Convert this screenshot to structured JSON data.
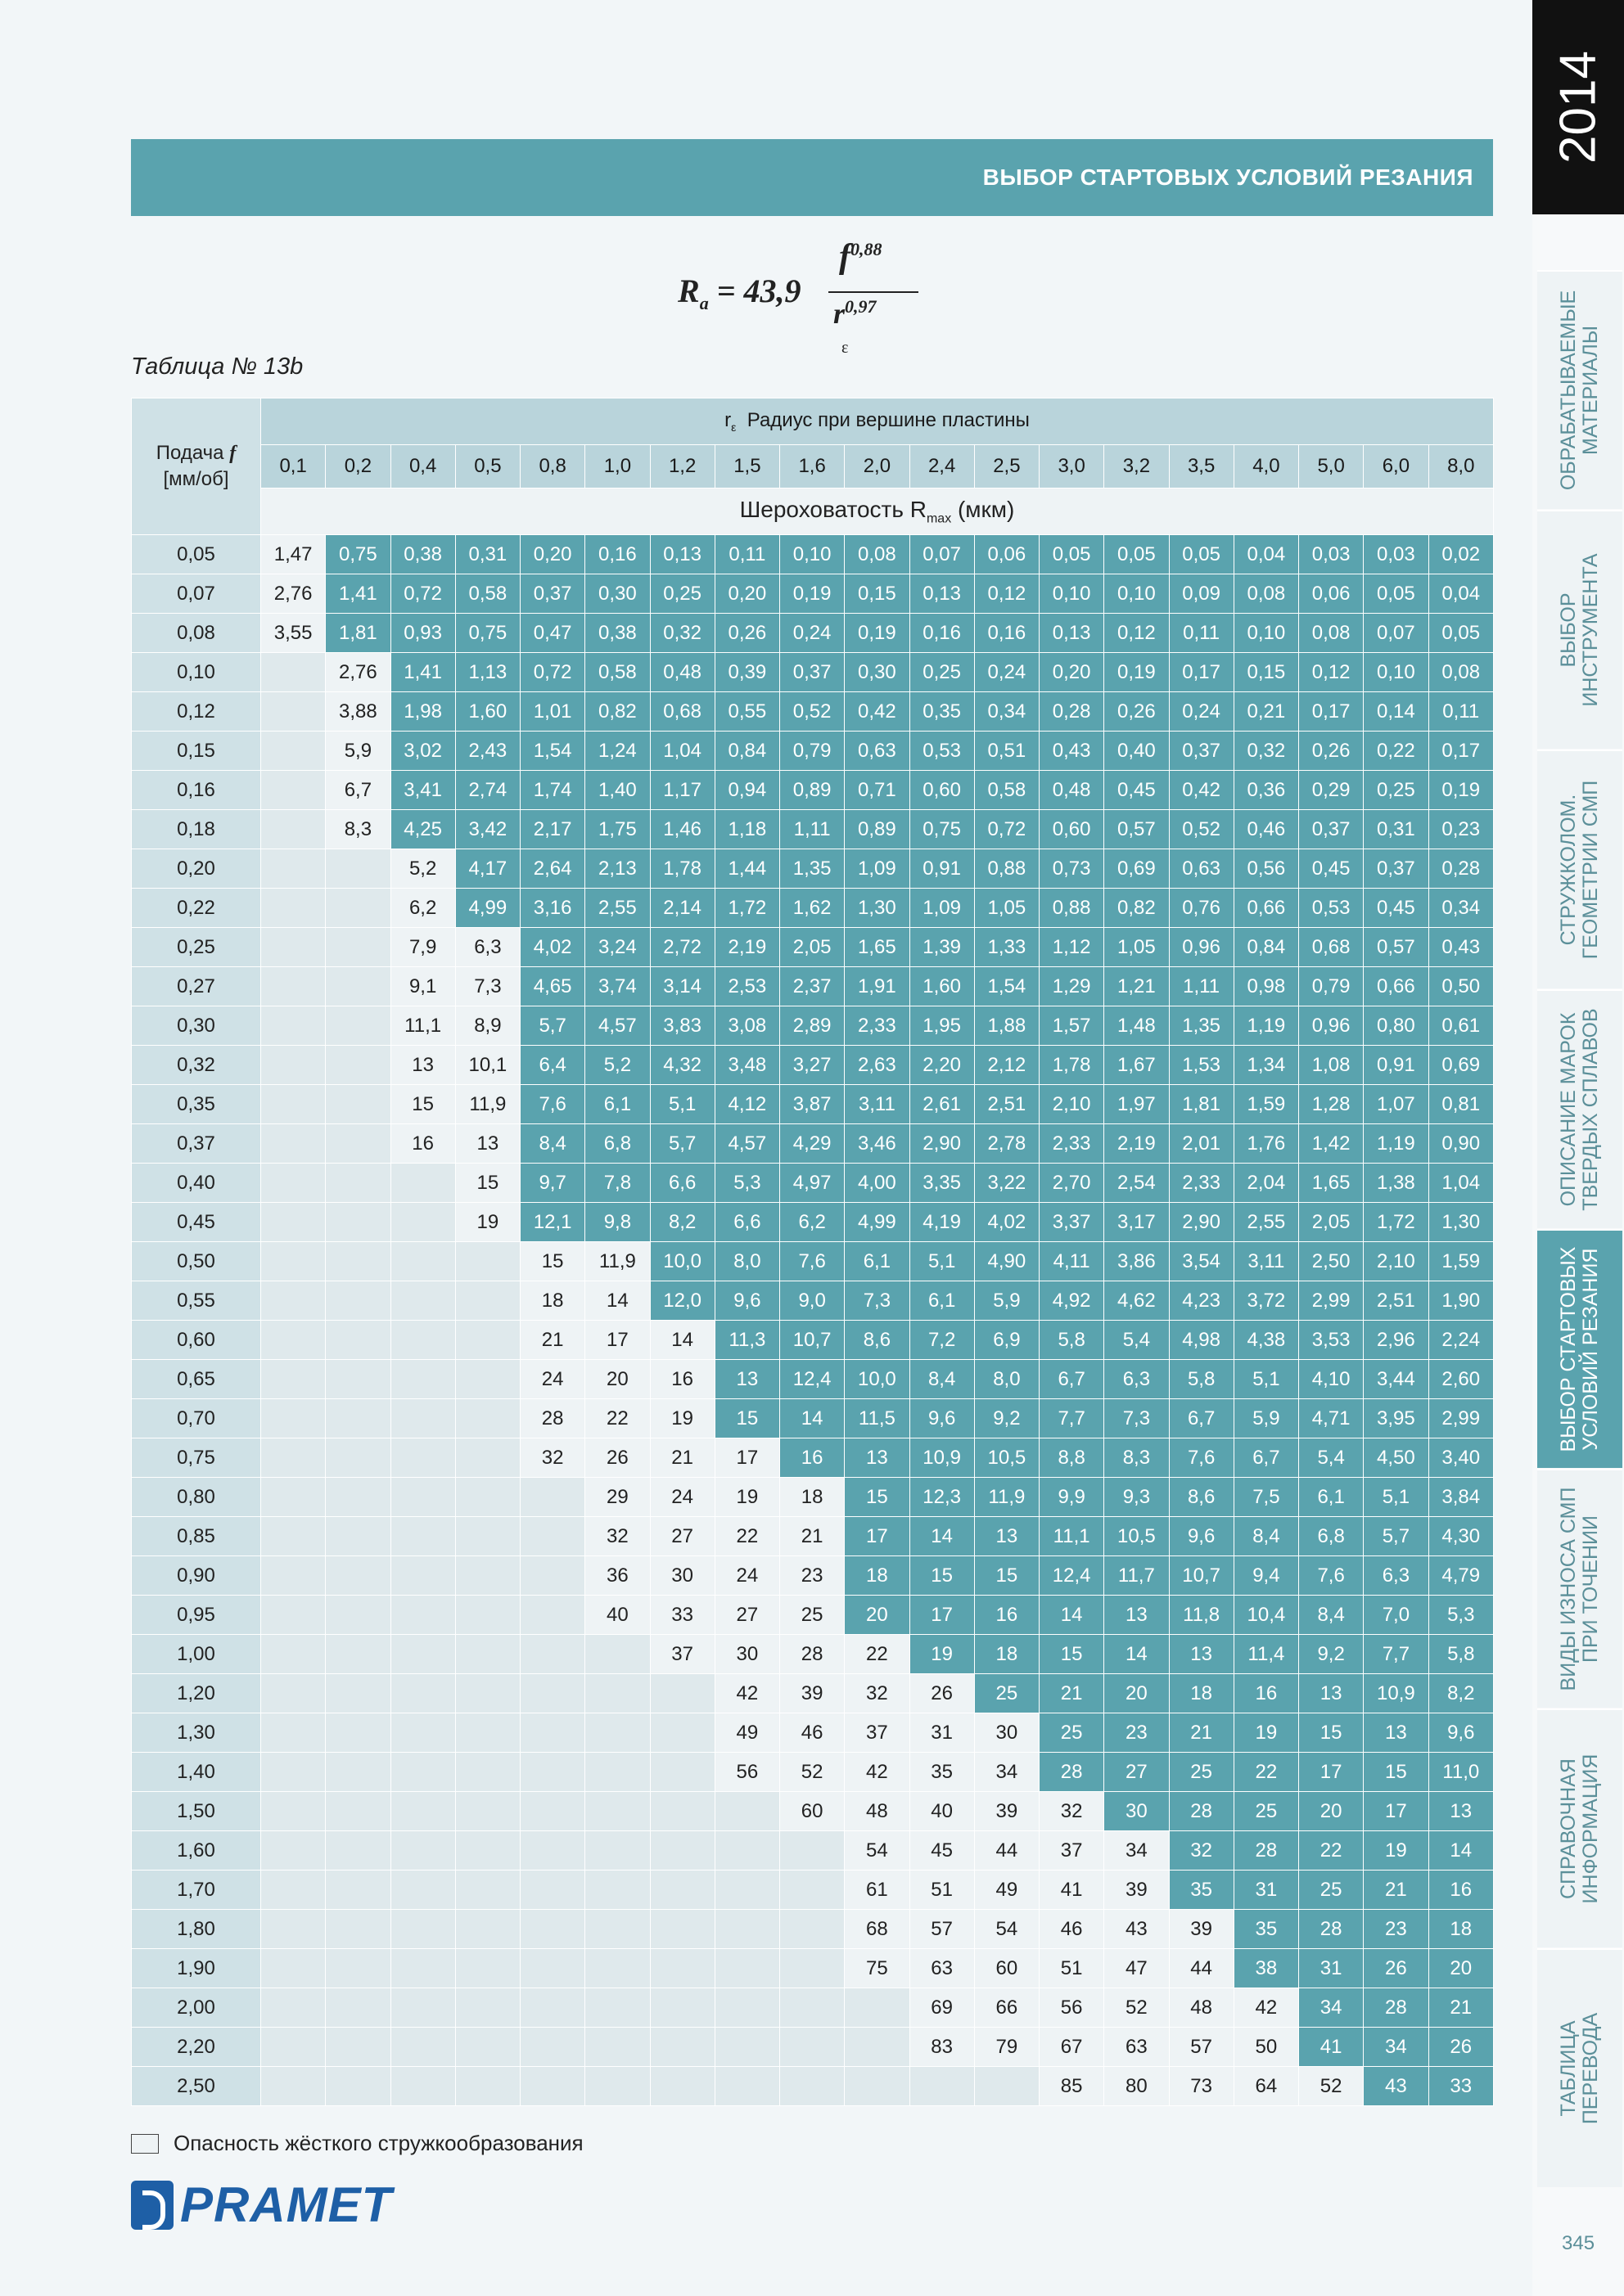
{
  "header": {
    "title": "ВЫБОР СТАРТОВЫХ УСЛОВИЙ РЕЗАНИЯ"
  },
  "formula": {
    "lhs_main": "R",
    "lhs_sub": "a",
    "eq": " = 43,9",
    "num_base": "f",
    "num_exp": "0,88",
    "den_base": "r",
    "den_sub": "ε",
    "den_exp": "0,97"
  },
  "table_caption": "Таблица № 13b",
  "table": {
    "feed_label_1": "Подача ",
    "feed_label_f": "f",
    "feed_label_2": "[мм/об]",
    "radius_symbol": "r",
    "radius_sub": "ε",
    "radius_title": "Радиус при вершине пластины",
    "roughness_label": "Шероховатость R",
    "roughness_sub": "max",
    "roughness_unit": " (мкм)",
    "radii": [
      "0,1",
      "0,2",
      "0,4",
      "0,5",
      "0,8",
      "1,0",
      "1,2",
      "1,5",
      "1,6",
      "2,0",
      "2,4",
      "2,5",
      "3,0",
      "3,2",
      "3,5",
      "4,0",
      "5,0",
      "6,0",
      "8,0"
    ],
    "rows": [
      {
        "f": "0,05",
        "s": 0,
        "k": 1,
        "v": [
          "1,47",
          "0,75",
          "0,38",
          "0,31",
          "0,20",
          "0,16",
          "0,13",
          "0,11",
          "0,10",
          "0,08",
          "0,07",
          "0,06",
          "0,05",
          "0,05",
          "0,05",
          "0,04",
          "0,03",
          "0,03",
          "0,02"
        ]
      },
      {
        "f": "0,07",
        "s": 0,
        "k": 1,
        "v": [
          "2,76",
          "1,41",
          "0,72",
          "0,58",
          "0,37",
          "0,30",
          "0,25",
          "0,20",
          "0,19",
          "0,15",
          "0,13",
          "0,12",
          "0,10",
          "0,10",
          "0,09",
          "0,08",
          "0,06",
          "0,05",
          "0,04"
        ]
      },
      {
        "f": "0,08",
        "s": 0,
        "k": 1,
        "v": [
          "3,55",
          "1,81",
          "0,93",
          "0,75",
          "0,47",
          "0,38",
          "0,32",
          "0,26",
          "0,24",
          "0,19",
          "0,16",
          "0,16",
          "0,13",
          "0,12",
          "0,11",
          "0,10",
          "0,08",
          "0,07",
          "0,05"
        ]
      },
      {
        "f": "0,10",
        "s": 1,
        "k": 1,
        "v": [
          "2,76",
          "1,41",
          "1,13",
          "0,72",
          "0,58",
          "0,48",
          "0,39",
          "0,37",
          "0,30",
          "0,25",
          "0,24",
          "0,20",
          "0,19",
          "0,17",
          "0,15",
          "0,12",
          "0,10",
          "0,08"
        ]
      },
      {
        "f": "0,12",
        "s": 1,
        "k": 1,
        "v": [
          "3,88",
          "1,98",
          "1,60",
          "1,01",
          "0,82",
          "0,68",
          "0,55",
          "0,52",
          "0,42",
          "0,35",
          "0,34",
          "0,28",
          "0,26",
          "0,24",
          "0,21",
          "0,17",
          "0,14",
          "0,11"
        ]
      },
      {
        "f": "0,15",
        "s": 1,
        "k": 1,
        "v": [
          "5,9",
          "3,02",
          "2,43",
          "1,54",
          "1,24",
          "1,04",
          "0,84",
          "0,79",
          "0,63",
          "0,53",
          "0,51",
          "0,43",
          "0,40",
          "0,37",
          "0,32",
          "0,26",
          "0,22",
          "0,17"
        ]
      },
      {
        "f": "0,16",
        "s": 1,
        "k": 1,
        "v": [
          "6,7",
          "3,41",
          "2,74",
          "1,74",
          "1,40",
          "1,17",
          "0,94",
          "0,89",
          "0,71",
          "0,60",
          "0,58",
          "0,48",
          "0,45",
          "0,42",
          "0,36",
          "0,29",
          "0,25",
          "0,19"
        ]
      },
      {
        "f": "0,18",
        "s": 1,
        "k": 1,
        "v": [
          "8,3",
          "4,25",
          "3,42",
          "2,17",
          "1,75",
          "1,46",
          "1,18",
          "1,11",
          "0,89",
          "0,75",
          "0,72",
          "0,60",
          "0,57",
          "0,52",
          "0,46",
          "0,37",
          "0,31",
          "0,23"
        ]
      },
      {
        "f": "0,20",
        "s": 2,
        "k": 1,
        "v": [
          "5,2",
          "4,17",
          "2,64",
          "2,13",
          "1,78",
          "1,44",
          "1,35",
          "1,09",
          "0,91",
          "0,88",
          "0,73",
          "0,69",
          "0,63",
          "0,56",
          "0,45",
          "0,37",
          "0,28"
        ]
      },
      {
        "f": "0,22",
        "s": 2,
        "k": 1,
        "v": [
          "6,2",
          "4,99",
          "3,16",
          "2,55",
          "2,14",
          "1,72",
          "1,62",
          "1,30",
          "1,09",
          "1,05",
          "0,88",
          "0,82",
          "0,76",
          "0,66",
          "0,53",
          "0,45",
          "0,34"
        ]
      },
      {
        "f": "0,25",
        "s": 2,
        "k": 2,
        "v": [
          "7,9",
          "6,3",
          "4,02",
          "3,24",
          "2,72",
          "2,19",
          "2,05",
          "1,65",
          "1,39",
          "1,33",
          "1,12",
          "1,05",
          "0,96",
          "0,84",
          "0,68",
          "0,57",
          "0,43"
        ]
      },
      {
        "f": "0,27",
        "s": 2,
        "k": 2,
        "v": [
          "9,1",
          "7,3",
          "4,65",
          "3,74",
          "3,14",
          "2,53",
          "2,37",
          "1,91",
          "1,60",
          "1,54",
          "1,29",
          "1,21",
          "1,11",
          "0,98",
          "0,79",
          "0,66",
          "0,50"
        ]
      },
      {
        "f": "0,30",
        "s": 2,
        "k": 2,
        "v": [
          "11,1",
          "8,9",
          "5,7",
          "4,57",
          "3,83",
          "3,08",
          "2,89",
          "2,33",
          "1,95",
          "1,88",
          "1,57",
          "1,48",
          "1,35",
          "1,19",
          "0,96",
          "0,80",
          "0,61"
        ]
      },
      {
        "f": "0,32",
        "s": 2,
        "k": 2,
        "v": [
          "13",
          "10,1",
          "6,4",
          "5,2",
          "4,32",
          "3,48",
          "3,27",
          "2,63",
          "2,20",
          "2,12",
          "1,78",
          "1,67",
          "1,53",
          "1,34",
          "1,08",
          "0,91",
          "0,69"
        ]
      },
      {
        "f": "0,35",
        "s": 2,
        "k": 2,
        "v": [
          "15",
          "11,9",
          "7,6",
          "6,1",
          "5,1",
          "4,12",
          "3,87",
          "3,11",
          "2,61",
          "2,51",
          "2,10",
          "1,97",
          "1,81",
          "1,59",
          "1,28",
          "1,07",
          "0,81"
        ]
      },
      {
        "f": "0,37",
        "s": 2,
        "k": 2,
        "v": [
          "16",
          "13",
          "8,4",
          "6,8",
          "5,7",
          "4,57",
          "4,29",
          "3,46",
          "2,90",
          "2,78",
          "2,33",
          "2,19",
          "2,01",
          "1,76",
          "1,42",
          "1,19",
          "0,90"
        ]
      },
      {
        "f": "0,40",
        "s": 3,
        "k": 1,
        "v": [
          "15",
          "9,7",
          "7,8",
          "6,6",
          "5,3",
          "4,97",
          "4,00",
          "3,35",
          "3,22",
          "2,70",
          "2,54",
          "2,33",
          "2,04",
          "1,65",
          "1,38",
          "1,04"
        ]
      },
      {
        "f": "0,45",
        "s": 3,
        "k": 1,
        "v": [
          "19",
          "12,1",
          "9,8",
          "8,2",
          "6,6",
          "6,2",
          "4,99",
          "4,19",
          "4,02",
          "3,37",
          "3,17",
          "2,90",
          "2,55",
          "2,05",
          "1,72",
          "1,30"
        ]
      },
      {
        "f": "0,50",
        "s": 4,
        "k": 2,
        "v": [
          "15",
          "11,9",
          "10,0",
          "8,0",
          "7,6",
          "6,1",
          "5,1",
          "4,90",
          "4,11",
          "3,86",
          "3,54",
          "3,11",
          "2,50",
          "2,10",
          "1,59"
        ]
      },
      {
        "f": "0,55",
        "s": 4,
        "k": 2,
        "v": [
          "18",
          "14",
          "12,0",
          "9,6",
          "9,0",
          "7,3",
          "6,1",
          "5,9",
          "4,92",
          "4,62",
          "4,23",
          "3,72",
          "2,99",
          "2,51",
          "1,90"
        ]
      },
      {
        "f": "0,60",
        "s": 4,
        "k": 3,
        "v": [
          "21",
          "17",
          "14",
          "11,3",
          "10,7",
          "8,6",
          "7,2",
          "6,9",
          "5,8",
          "5,4",
          "4,98",
          "4,38",
          "3,53",
          "2,96",
          "2,24"
        ]
      },
      {
        "f": "0,65",
        "s": 4,
        "k": 3,
        "v": [
          "24",
          "20",
          "16",
          "13",
          "12,4",
          "10,0",
          "8,4",
          "8,0",
          "6,7",
          "6,3",
          "5,8",
          "5,1",
          "4,10",
          "3,44",
          "2,60"
        ]
      },
      {
        "f": "0,70",
        "s": 4,
        "k": 3,
        "v": [
          "28",
          "22",
          "19",
          "15",
          "14",
          "11,5",
          "9,6",
          "9,2",
          "7,7",
          "7,3",
          "6,7",
          "5,9",
          "4,71",
          "3,95",
          "2,99"
        ]
      },
      {
        "f": "0,75",
        "s": 4,
        "k": 4,
        "v": [
          "32",
          "26",
          "21",
          "17",
          "16",
          "13",
          "10,9",
          "10,5",
          "8,8",
          "8,3",
          "7,6",
          "6,7",
          "5,4",
          "4,50",
          "3,40"
        ]
      },
      {
        "f": "0,80",
        "s": 5,
        "k": 4,
        "v": [
          "29",
          "24",
          "19",
          "18",
          "15",
          "12,3",
          "11,9",
          "9,9",
          "9,3",
          "8,6",
          "7,5",
          "6,1",
          "5,1",
          "3,84"
        ]
      },
      {
        "f": "0,85",
        "s": 5,
        "k": 4,
        "v": [
          "32",
          "27",
          "22",
          "21",
          "17",
          "14",
          "13",
          "11,1",
          "10,5",
          "9,6",
          "8,4",
          "6,8",
          "5,7",
          "4,30"
        ]
      },
      {
        "f": "0,90",
        "s": 5,
        "k": 4,
        "v": [
          "36",
          "30",
          "24",
          "23",
          "18",
          "15",
          "15",
          "12,4",
          "11,7",
          "10,7",
          "9,4",
          "7,6",
          "6,3",
          "4,79"
        ]
      },
      {
        "f": "0,95",
        "s": 5,
        "k": 4,
        "v": [
          "40",
          "33",
          "27",
          "25",
          "20",
          "17",
          "16",
          "14",
          "13",
          "11,8",
          "10,4",
          "8,4",
          "7,0",
          "5,3"
        ]
      },
      {
        "f": "1,00",
        "s": 6,
        "k": 4,
        "v": [
          "37",
          "30",
          "28",
          "22",
          "19",
          "18",
          "15",
          "14",
          "13",
          "11,4",
          "9,2",
          "7,7",
          "5,8"
        ]
      },
      {
        "f": "1,20",
        "s": 7,
        "k": 4,
        "v": [
          "42",
          "39",
          "32",
          "26",
          "25",
          "21",
          "20",
          "18",
          "16",
          "13",
          "10,9",
          "8,2"
        ]
      },
      {
        "f": "1,30",
        "s": 7,
        "k": 5,
        "v": [
          "49",
          "46",
          "37",
          "31",
          "30",
          "25",
          "23",
          "21",
          "19",
          "15",
          "13",
          "9,6"
        ]
      },
      {
        "f": "1,40",
        "s": 7,
        "k": 5,
        "v": [
          "56",
          "52",
          "42",
          "35",
          "34",
          "28",
          "27",
          "25",
          "22",
          "17",
          "15",
          "11,0"
        ]
      },
      {
        "f": "1,50",
        "s": 8,
        "k": 5,
        "v": [
          "60",
          "48",
          "40",
          "39",
          "32",
          "30",
          "28",
          "25",
          "20",
          "17",
          "13"
        ]
      },
      {
        "f": "1,60",
        "s": 9,
        "k": 5,
        "v": [
          "54",
          "45",
          "44",
          "37",
          "34",
          "32",
          "28",
          "22",
          "19",
          "14"
        ]
      },
      {
        "f": "1,70",
        "s": 9,
        "k": 5,
        "v": [
          "61",
          "51",
          "49",
          "41",
          "39",
          "35",
          "31",
          "25",
          "21",
          "16"
        ]
      },
      {
        "f": "1,80",
        "s": 9,
        "k": 6,
        "v": [
          "68",
          "57",
          "54",
          "46",
          "43",
          "39",
          "35",
          "28",
          "23",
          "18"
        ]
      },
      {
        "f": "1,90",
        "s": 9,
        "k": 6,
        "v": [
          "75",
          "63",
          "60",
          "51",
          "47",
          "44",
          "38",
          "31",
          "26",
          "20"
        ]
      },
      {
        "f": "2,00",
        "s": 10,
        "k": 6,
        "v": [
          "69",
          "66",
          "56",
          "52",
          "48",
          "42",
          "34",
          "28",
          "21"
        ]
      },
      {
        "f": "2,20",
        "s": 10,
        "k": 6,
        "v": [
          "83",
          "79",
          "67",
          "63",
          "57",
          "50",
          "41",
          "34",
          "26"
        ]
      },
      {
        "f": "2,50",
        "s": 12,
        "k": 5,
        "v": [
          "85",
          "80",
          "73",
          "64",
          "52",
          "43",
          "33"
        ]
      }
    ]
  },
  "legend": {
    "text": "Опасность жёсткого стружкообразования"
  },
  "logo": {
    "text": "PRAMET"
  },
  "sidebar": {
    "year": "2014",
    "tabs": [
      {
        "label": "ОБРАБАТЫВАЕМЫЕ\nМАТЕРИАЛЫ",
        "active": false
      },
      {
        "label": "ВЫБОР\nИНСТРУМЕНТА",
        "active": false
      },
      {
        "label": "СТРУЖКОЛОМ.\nГЕОМЕТРИИ СМП",
        "active": false
      },
      {
        "label": "ОПИСАНИЕ МАРОК\nТВЕРДЫХ СПЛАВОВ",
        "active": false
      },
      {
        "label": "ВЫБОР СТАРТОВЫХ\nУСЛОВИЙ РЕЗАНИЯ",
        "active": true
      },
      {
        "label": "ВИДЫ ИЗНОСА СМП\nПРИ ТОЧЕНИИ",
        "active": false
      },
      {
        "label": "СПРАВОЧНАЯ\nИНФОРМАЦИЯ",
        "active": false
      },
      {
        "label": "ТАБЛИЦА\nПЕРЕВОДА",
        "active": false
      }
    ]
  },
  "page_number": "345"
}
